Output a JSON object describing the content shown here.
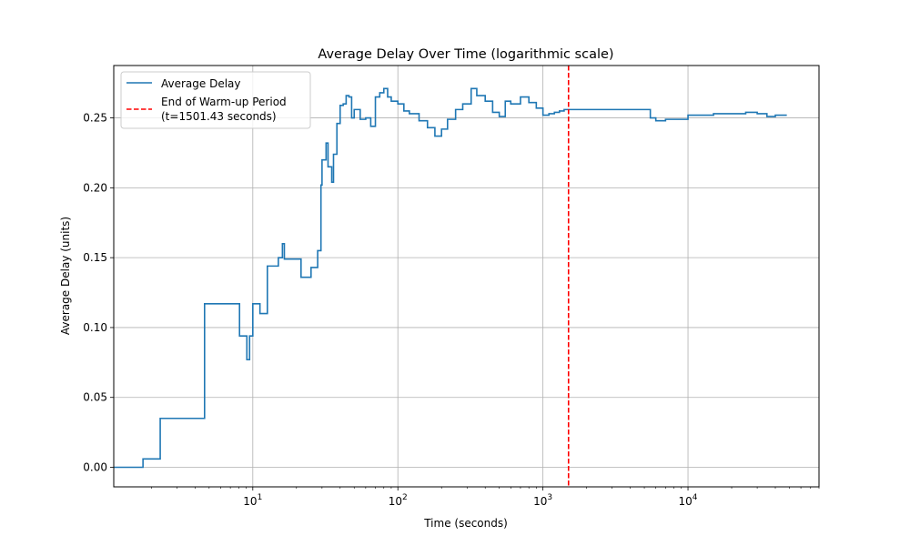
{
  "chart_data": {
    "type": "line",
    "title": "Average Delay Over Time (logarithmic scale)",
    "xlabel": "Time (seconds)",
    "ylabel": "Average Delay (units)",
    "xscale": "log",
    "xlim": [
      1.1,
      80000
    ],
    "ylim": [
      -0.014,
      0.2875
    ],
    "grid": true,
    "legend_position": "upper-left",
    "x_tick_labels": [
      {
        "value": 10,
        "base": "10",
        "exp": "1"
      },
      {
        "value": 100,
        "base": "10",
        "exp": "2"
      },
      {
        "value": 1000,
        "base": "10",
        "exp": "3"
      },
      {
        "value": 10000,
        "base": "10",
        "exp": "4"
      }
    ],
    "y_ticks": [
      0.0,
      0.05,
      0.1,
      0.15,
      0.2,
      0.25
    ],
    "y_tick_labels": [
      "0.00",
      "0.05",
      "0.10",
      "0.15",
      "0.20",
      "0.25"
    ],
    "series": [
      {
        "name": "Average Delay",
        "color": "#1f77b4",
        "step": true,
        "x": [
          1.1,
          1.75,
          2.3,
          4.6,
          4.65,
          8.1,
          9.1,
          9.5,
          10.0,
          11.2,
          12.6,
          15.0,
          16.0,
          16.5,
          21.5,
          25.2,
          28.0,
          29.5,
          30.0,
          32.0,
          33.0,
          35.0,
          36.0,
          38.0,
          40.0,
          42.0,
          44.0,
          46.0,
          48.0,
          50.0,
          55.0,
          60.0,
          65.0,
          70.0,
          75.0,
          80.0,
          85.0,
          90.0,
          100.0,
          110.0,
          120.0,
          140.0,
          160.0,
          180.0,
          200.0,
          220.0,
          250.0,
          280.0,
          320.0,
          350.0,
          400.0,
          450.0,
          500.0,
          550.0,
          600.0,
          700.0,
          800.0,
          900.0,
          1000.0,
          1100.0,
          1200.0,
          1300.0,
          1400.0,
          1500.0,
          2000.0,
          3000.0,
          4000.0,
          5000.0,
          5500.0,
          6000.0,
          7000.0,
          8000.0,
          9000.0,
          10000.0,
          12000.0,
          15000.0,
          18000.0,
          20000.0,
          25000.0,
          30000.0,
          35000.0,
          40000.0,
          48000.0
        ],
        "values": [
          0.0,
          0.006,
          0.035,
          0.035,
          0.117,
          0.094,
          0.077,
          0.094,
          0.117,
          0.11,
          0.144,
          0.15,
          0.16,
          0.149,
          0.136,
          0.143,
          0.155,
          0.202,
          0.22,
          0.232,
          0.215,
          0.204,
          0.224,
          0.246,
          0.259,
          0.26,
          0.266,
          0.265,
          0.25,
          0.256,
          0.249,
          0.25,
          0.244,
          0.265,
          0.268,
          0.271,
          0.265,
          0.262,
          0.26,
          0.255,
          0.253,
          0.248,
          0.243,
          0.237,
          0.242,
          0.249,
          0.256,
          0.26,
          0.271,
          0.266,
          0.262,
          0.254,
          0.251,
          0.262,
          0.26,
          0.265,
          0.261,
          0.257,
          0.252,
          0.253,
          0.254,
          0.255,
          0.256,
          0.256,
          0.256,
          0.256,
          0.256,
          0.256,
          0.25,
          0.248,
          0.249,
          0.249,
          0.249,
          0.252,
          0.252,
          0.253,
          0.253,
          0.253,
          0.254,
          0.253,
          0.251,
          0.252,
          0.252
        ]
      },
      {
        "name": "End of Warm-up Period\n(t=1501.43 seconds)",
        "legend_lines": [
          "End of Warm-up Period",
          "(t=1501.43 seconds)"
        ],
        "color": "#ff0000",
        "style": "dashed",
        "type": "vline",
        "x_value": 1501.43
      }
    ]
  }
}
